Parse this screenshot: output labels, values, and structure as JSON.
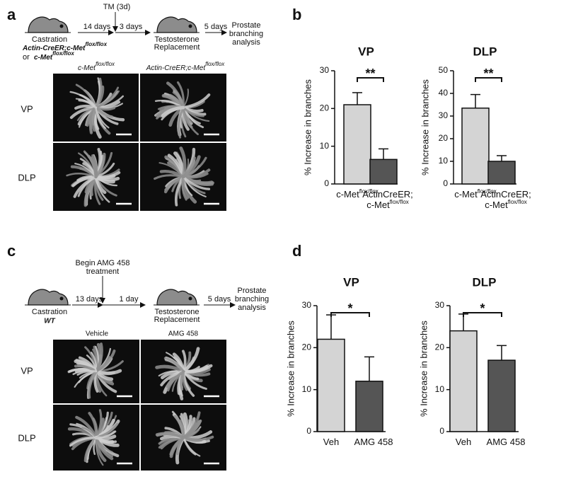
{
  "panels": {
    "a": {
      "label": "a",
      "diagram": {
        "drug": "TM (3d)",
        "castration": "Castration",
        "interval1": "14 days",
        "interval2": "3 days",
        "replacement": [
          "Testosterone",
          "Replacement"
        ],
        "interval3": "5 days",
        "analysis": [
          "Prostate",
          "branching",
          "analysis"
        ],
        "genotype1": [
          "Actin-CreER;c-Met",
          "flox/flox"
        ],
        "or": "or",
        "genotype2": [
          "c-Met",
          "flox/flox"
        ]
      },
      "columns": [
        [
          "c-Met",
          "flox/flox"
        ],
        [
          "Actin-CreER;c-Met",
          "flox/flox"
        ]
      ],
      "rows": [
        "VP",
        "DLP"
      ]
    },
    "b": {
      "label": "b"
    },
    "c": {
      "label": "c",
      "diagram": {
        "drug": [
          "Begin AMG 458",
          "treatment"
        ],
        "castration": "Castration",
        "genotype": "WT",
        "interval1": "13 days",
        "interval2": "1 day",
        "replacement": [
          "Testosterone",
          "Replacement"
        ],
        "interval3": "5 days",
        "analysis": [
          "Prostate",
          "branching",
          "analysis"
        ]
      },
      "columns": [
        "Vehicle",
        "AMG 458"
      ],
      "rows": [
        "VP",
        "DLP"
      ]
    },
    "d": {
      "label": "d"
    }
  },
  "chart_data": [
    {
      "type": "bar",
      "title": "VP",
      "ylabel": "% Increase in branches",
      "categories": [
        {
          "lines": [
            [
              "c-Met",
              "flox/flox"
            ]
          ]
        },
        {
          "lines": [
            [
              "ActinCreER;"
            ],
            [
              "c-Met",
              "flox/flox"
            ]
          ]
        }
      ],
      "values": [
        21,
        6.5
      ],
      "errors": [
        3.2,
        2.8
      ],
      "colors": [
        "#d4d4d4",
        "#555555"
      ],
      "ylim": [
        0,
        30
      ],
      "yticks": [
        0,
        10,
        20,
        30
      ],
      "significance": "**"
    },
    {
      "type": "bar",
      "title": "DLP",
      "ylabel": "% Increase in branches",
      "categories": [
        {
          "lines": [
            [
              "c-Met",
              "flox/flox"
            ]
          ]
        },
        {
          "lines": [
            [
              "ActinCreER;"
            ],
            [
              "c-Met",
              "flox/flox"
            ]
          ]
        }
      ],
      "values": [
        33.5,
        10
      ],
      "errors": [
        6,
        2.5
      ],
      "colors": [
        "#d4d4d4",
        "#555555"
      ],
      "ylim": [
        0,
        50
      ],
      "yticks": [
        0,
        10,
        20,
        30,
        40,
        50
      ],
      "significance": "**"
    },
    {
      "type": "bar",
      "title": "VP",
      "ylabel": "% Increase in branches",
      "categories": [
        {
          "lines": [
            [
              "Veh"
            ]
          ]
        },
        {
          "lines": [
            [
              "AMG 458"
            ]
          ]
        }
      ],
      "values": [
        22,
        12
      ],
      "errors": [
        5.8,
        5.8
      ],
      "colors": [
        "#d4d4d4",
        "#555555"
      ],
      "ylim": [
        0,
        30
      ],
      "yticks": [
        0,
        10,
        20,
        30
      ],
      "significance": "*"
    },
    {
      "type": "bar",
      "title": "DLP",
      "ylabel": "% Increase in branches",
      "categories": [
        {
          "lines": [
            [
              "Veh"
            ]
          ]
        },
        {
          "lines": [
            [
              "AMG 458"
            ]
          ]
        }
      ],
      "values": [
        24,
        17
      ],
      "errors": [
        4,
        3.5
      ],
      "colors": [
        "#d4d4d4",
        "#555555"
      ],
      "ylim": [
        0,
        30
      ],
      "yticks": [
        0,
        10,
        20,
        30
      ],
      "significance": "*"
    }
  ]
}
